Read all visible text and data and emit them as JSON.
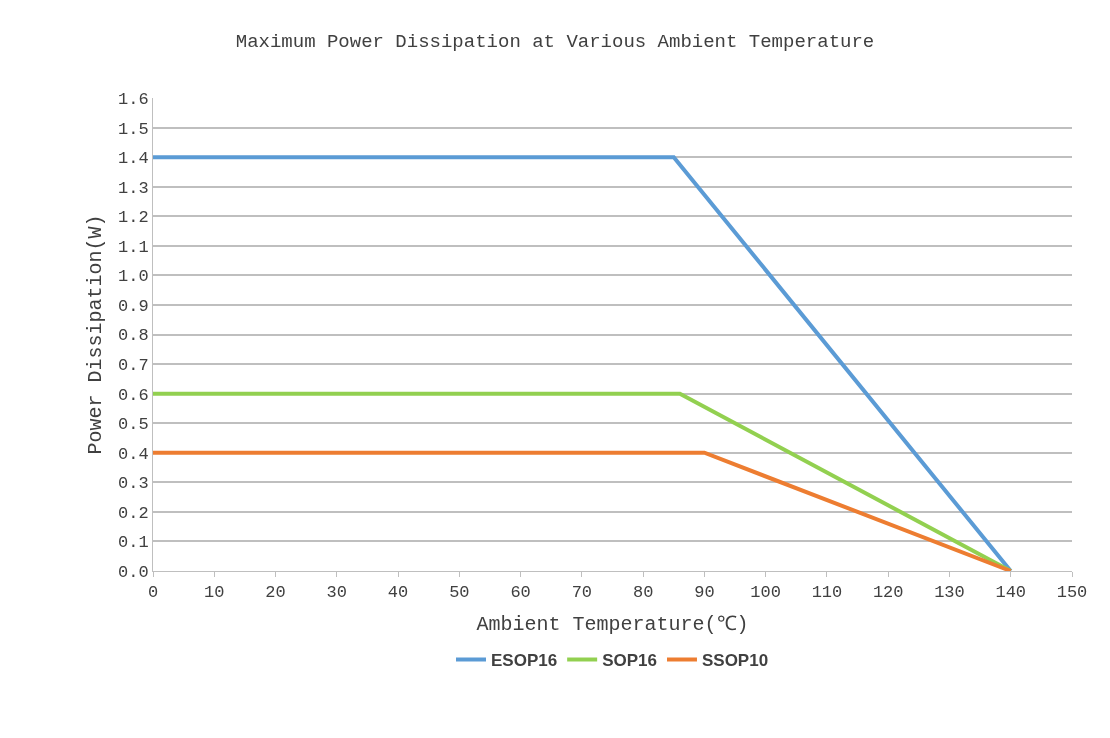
{
  "chart_data": {
    "type": "line",
    "title": "Maximum Power Dissipation at Various Ambient Temperature",
    "xlabel": "Ambient Temperature(℃)",
    "ylabel": "Power Dissipation(W)",
    "series": [
      {
        "name": "ESOP16",
        "color": "#5b9bd5",
        "x": [
          0,
          85,
          140
        ],
        "values": [
          1.4,
          1.4,
          0
        ]
      },
      {
        "name": "SOP16",
        "color": "#92d050",
        "x": [
          0,
          86,
          140
        ],
        "values": [
          0.6,
          0.6,
          0
        ]
      },
      {
        "name": "SSOP10",
        "color": "#ed7d31",
        "x": [
          0,
          90,
          140
        ],
        "values": [
          0.4,
          0.4,
          0
        ]
      }
    ],
    "xlim": [
      0,
      150
    ],
    "xticks": [
      0,
      10,
      20,
      30,
      40,
      50,
      60,
      70,
      80,
      90,
      100,
      110,
      120,
      130,
      140,
      150
    ],
    "ylim": [
      0,
      1.6
    ],
    "yticks": [
      {
        "value": 0,
        "label": "0.0"
      },
      {
        "value": 0.1,
        "label": "0.1"
      },
      {
        "value": 0.2,
        "label": "0.2"
      },
      {
        "value": 0.3,
        "label": "0.3"
      },
      {
        "value": 0.4,
        "label": "0.4"
      },
      {
        "value": 0.5,
        "label": "0.5"
      },
      {
        "value": 0.6,
        "label": "0.6"
      },
      {
        "value": 0.7,
        "label": "0.7"
      },
      {
        "value": 0.8,
        "label": "0.8"
      },
      {
        "value": 0.9,
        "label": "0.9"
      },
      {
        "value": 1,
        "label": "1.0"
      },
      {
        "value": 1.1,
        "label": "1.1"
      },
      {
        "value": 1.2,
        "label": "1.2"
      },
      {
        "value": 1.3,
        "label": "1.3"
      },
      {
        "value": 1.4,
        "label": "1.4"
      },
      {
        "value": 1.5,
        "label": "1.5"
      },
      {
        "value": 1.6,
        "label": "1.6"
      }
    ],
    "grid": "y",
    "legend": "bottom",
    "marker": "none",
    "line_style": "solid"
  }
}
